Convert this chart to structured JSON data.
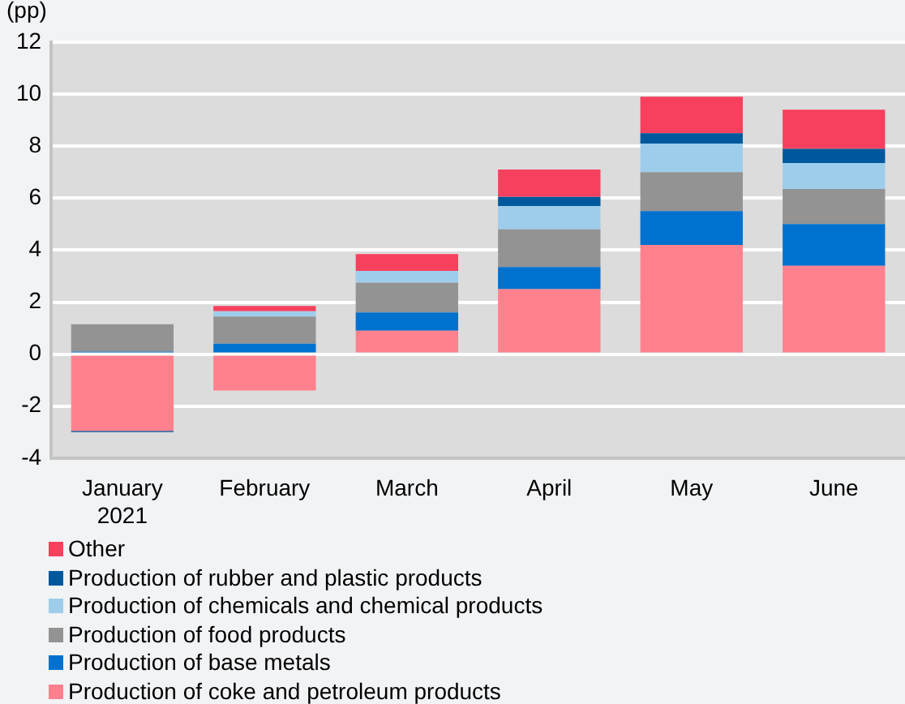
{
  "chart_data": {
    "type": "bar",
    "stacked": true,
    "ylabel": "(pp)",
    "categories": [
      "January\n2021",
      "February",
      "March",
      "April",
      "May",
      "June"
    ],
    "series": [
      {
        "name": "Production of coke and petroleum products",
        "color": "#ff818e",
        "values": [
          -2.95,
          -1.4,
          0.9,
          2.5,
          4.2,
          3.4
        ]
      },
      {
        "name": "Production of base metals",
        "color": "#0071ce",
        "values": [
          0.1,
          0.4,
          0.7,
          0.85,
          1.3,
          1.6
        ]
      },
      {
        "name": "Production of food products",
        "color": "#939393",
        "values": [
          1.05,
          1.05,
          1.15,
          1.45,
          1.5,
          1.35
        ]
      },
      {
        "name": "Production of chemicals and chemical products",
        "color": "#9dcdeb",
        "values": [
          0,
          0.2,
          0.45,
          0.9,
          1.1,
          1.0
        ]
      },
      {
        "name": "Production of rubber and plastic products",
        "color": "#00589c",
        "values": [
          -0.05,
          0,
          0,
          0.35,
          0.4,
          0.55
        ]
      },
      {
        "name": "Other",
        "color": "#f7405d",
        "values": [
          0,
          0.2,
          0.65,
          1.05,
          1.4,
          1.5
        ]
      }
    ],
    "ylim": [
      -4,
      12
    ],
    "yticks": [
      -4,
      -2,
      0,
      2,
      4,
      6,
      8,
      10,
      12
    ],
    "grid": "y",
    "legend": "bottom"
  }
}
